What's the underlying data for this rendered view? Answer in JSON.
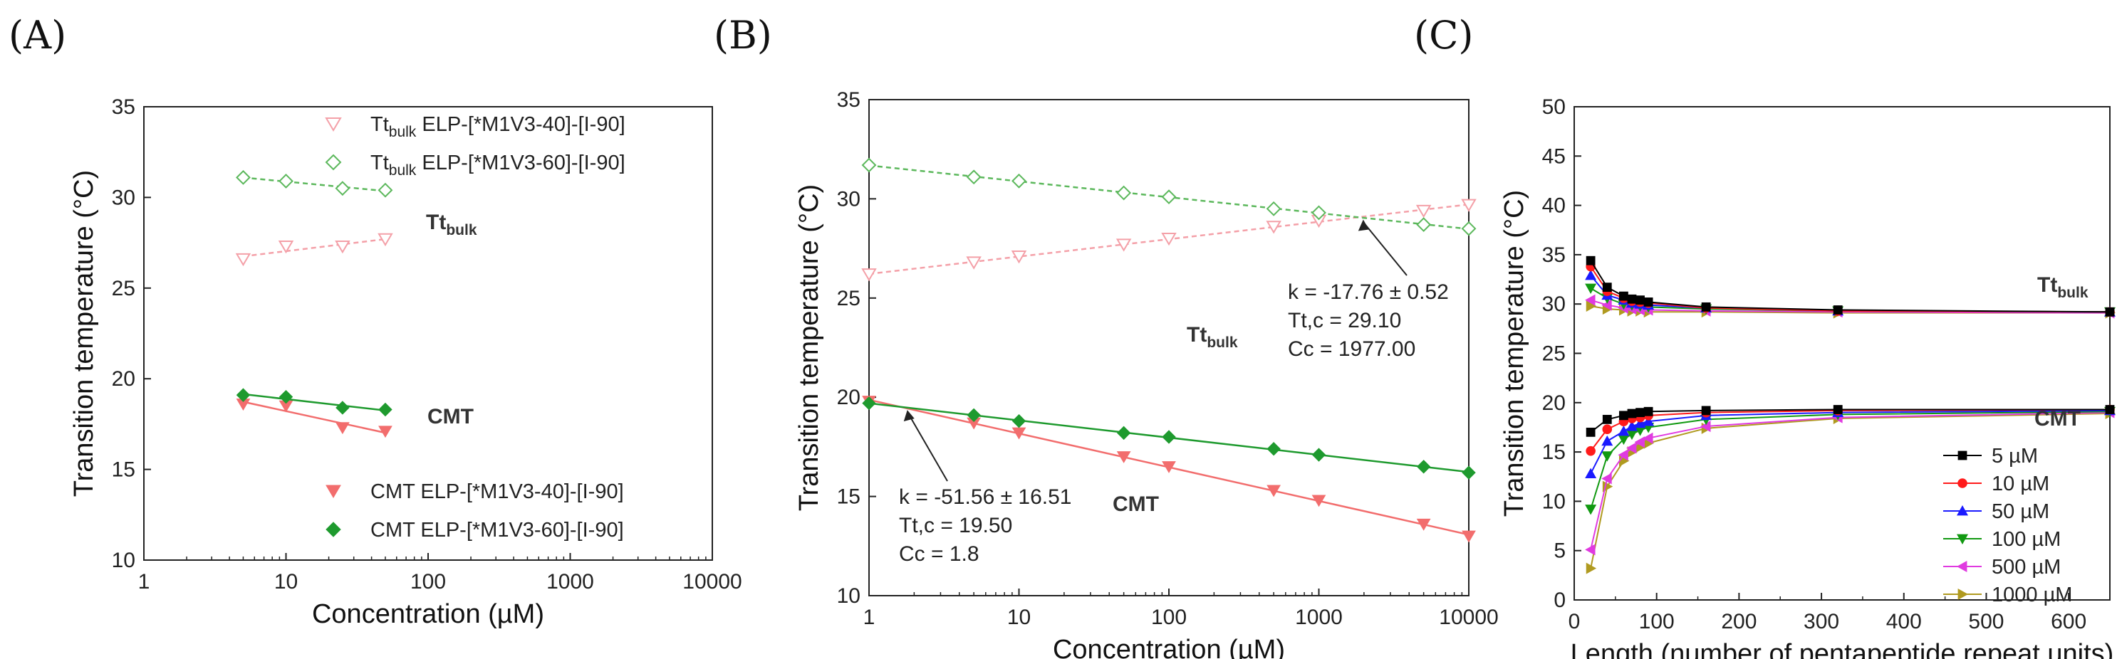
{
  "chart_data": [
    {
      "panel": "(A)",
      "type": "scatter",
      "xlabel": "Concentration (µM)",
      "ylabel": "Transition temperature (°C)",
      "xscale": "log",
      "xlim": [
        1,
        10000
      ],
      "ylim": [
        10,
        35
      ],
      "x_ticks": [
        "1",
        "10",
        "100",
        "1000",
        "10000"
      ],
      "y_ticks": [
        "10",
        "15",
        "20",
        "25",
        "30",
        "35"
      ],
      "grid": false,
      "legend_top": [
        {
          "sub": "bulk",
          "prefix": "Tt",
          "label": "ELP-[*M1V3-40]-[I-90]"
        },
        {
          "sub": "bulk",
          "prefix": "Tt",
          "label": "ELP-[*M1V3-60]-[I-90]"
        }
      ],
      "legend_bottom": [
        {
          "label": "CMT ELP-[*M1V3-40]-[I-90]"
        },
        {
          "label": "CMT ELP-[*M1V3-60]-[I-90]"
        }
      ],
      "annotations": {
        "tt_bulk": "Tt",
        "tt_bulk_sub": "bulk",
        "cmt": "CMT"
      },
      "series": [
        {
          "key": "tt40",
          "marker": "tri-down-open",
          "color": "#f4a0a8",
          "x": [
            5,
            10,
            25,
            50
          ],
          "y": [
            26.6,
            27.3,
            27.3,
            27.7
          ],
          "fit": true
        },
        {
          "key": "tt60",
          "marker": "diamond-open",
          "color": "#5cb85c",
          "x": [
            5,
            10,
            25,
            50
          ],
          "y": [
            31.1,
            30.9,
            30.5,
            30.4
          ],
          "fit": true
        },
        {
          "key": "cmt40",
          "marker": "tri-down-filled",
          "color": "#f26d6d",
          "x": [
            5,
            10,
            25,
            50
          ],
          "y": [
            18.6,
            18.5,
            17.3,
            17.1
          ],
          "fit": true
        },
        {
          "key": "cmt60",
          "marker": "diamond-filled",
          "color": "#1e9a2e",
          "x": [
            5,
            10,
            25,
            50
          ],
          "y": [
            19.1,
            19.0,
            18.4,
            18.3
          ],
          "fit": true
        }
      ]
    },
    {
      "panel": "(B)",
      "type": "scatter",
      "xlabel": "Concentration (µM)",
      "ylabel": "Transition temperature (°C)",
      "xscale": "log",
      "xlim": [
        1,
        10000
      ],
      "ylim": [
        10,
        35
      ],
      "x_ticks": [
        "1",
        "10",
        "100",
        "1000",
        "10000"
      ],
      "y_ticks": [
        "10",
        "15",
        "20",
        "25",
        "30",
        "35"
      ],
      "grid": false,
      "annotations": {
        "bulk_k": "k = -17.76 ± 0.52",
        "bulk_ttc": "Tt,c = 29.10",
        "bulk_cc": "Cc = 1977.00",
        "cmt_k": "k = -51.56 ± 16.51",
        "cmt_ttc": "Tt,c = 19.50",
        "cmt_cc": "Cc = 1.8",
        "tt_bulk": "Tt",
        "tt_bulk_sub": "bulk",
        "cmt": "CMT"
      },
      "series": [
        {
          "key": "tt_pink",
          "marker": "tri-down-open",
          "color": "#f4a0a8",
          "x": [
            1,
            5,
            10,
            50,
            100,
            500,
            1000,
            5000,
            10000
          ],
          "y": [
            26.2,
            26.8,
            27.1,
            27.7,
            28.0,
            28.6,
            28.9,
            29.4,
            29.7
          ],
          "fit": true
        },
        {
          "key": "tt_green",
          "marker": "diamond-open",
          "color": "#5cb85c",
          "x": [
            1,
            5,
            10,
            50,
            100,
            500,
            1000,
            5000,
            10000
          ],
          "y": [
            31.7,
            31.1,
            30.9,
            30.3,
            30.1,
            29.5,
            29.3,
            28.7,
            28.5
          ],
          "fit": true
        },
        {
          "key": "cmt_pink",
          "marker": "tri-down-filled",
          "color": "#f26d6d",
          "x": [
            1,
            5,
            10,
            50,
            100,
            500,
            1000,
            5000,
            10000
          ],
          "y": [
            19.8,
            18.7,
            18.2,
            17.0,
            16.5,
            15.3,
            14.8,
            13.6,
            13.0
          ],
          "fit": true
        },
        {
          "key": "cmt_green",
          "marker": "diamond-filled",
          "color": "#1e9a2e",
          "x": [
            1,
            5,
            10,
            50,
            100,
            500,
            1000,
            5000,
            10000
          ],
          "y": [
            19.7,
            19.1,
            18.8,
            18.2,
            18.0,
            17.4,
            17.1,
            16.5,
            16.2
          ],
          "fit": true
        }
      ]
    },
    {
      "panel": "(C)",
      "type": "line",
      "xlabel": "Length (number of pentapeptide repeat units)",
      "ylabel": "Transition temperature (°C)",
      "xlim": [
        0,
        650
      ],
      "ylim": [
        0,
        50
      ],
      "x_ticks": [
        "0",
        "100",
        "200",
        "300",
        "400",
        "500",
        "600"
      ],
      "y_ticks": [
        "0",
        "5",
        "10",
        "15",
        "20",
        "25",
        "30",
        "35",
        "40",
        "45",
        "50"
      ],
      "grid": false,
      "legend_position": "bottom-right",
      "annotations": {
        "tt_bulk": "Tt",
        "tt_bulk_sub": "bulk",
        "cmt": "CMT"
      },
      "x": [
        20,
        40,
        60,
        70,
        80,
        90,
        160,
        320,
        650
      ],
      "series": [
        {
          "name": "5 µM",
          "marker": "square",
          "color": "#000000",
          "upper": [
            34.4,
            31.7,
            30.8,
            30.5,
            30.4,
            30.2,
            29.7,
            29.4,
            29.2
          ],
          "lower": [
            17.0,
            18.3,
            18.7,
            18.9,
            19.0,
            19.1,
            19.2,
            19.3,
            19.3
          ]
        },
        {
          "name": "10 µM",
          "marker": "circle",
          "color": "#ff1a1a",
          "upper": [
            33.8,
            31.3,
            30.6,
            30.3,
            30.2,
            30.1,
            29.6,
            29.3,
            29.2
          ],
          "lower": [
            15.1,
            17.3,
            18.1,
            18.4,
            18.5,
            18.7,
            19.0,
            19.2,
            19.3
          ]
        },
        {
          "name": "50 µM",
          "marker": "triangle-up",
          "color": "#1a1aff",
          "upper": [
            32.9,
            30.9,
            30.4,
            30.1,
            30.0,
            29.9,
            29.6,
            29.3,
            29.2
          ],
          "lower": [
            12.8,
            16.1,
            17.1,
            17.6,
            17.9,
            18.1,
            18.7,
            19.0,
            19.2
          ]
        },
        {
          "name": "100 µM",
          "marker": "triangle-down",
          "color": "#119911",
          "upper": [
            31.6,
            30.6,
            30.0,
            29.9,
            29.8,
            29.7,
            29.5,
            29.3,
            29.2
          ],
          "lower": [
            9.2,
            14.6,
            16.3,
            16.8,
            17.2,
            17.5,
            18.3,
            18.8,
            19.1
          ]
        },
        {
          "name": "500 µM",
          "marker": "triangle-left",
          "color": "#e03ae0",
          "upper": [
            30.4,
            29.9,
            29.6,
            29.5,
            29.4,
            29.4,
            29.3,
            29.2,
            29.1
          ],
          "lower": [
            5.1,
            12.3,
            14.7,
            15.4,
            16.0,
            16.4,
            17.6,
            18.5,
            19.0
          ]
        },
        {
          "name": "1000 µM",
          "marker": "triangle-right",
          "color": "#b09a20",
          "upper": [
            29.8,
            29.5,
            29.4,
            29.3,
            29.3,
            29.2,
            29.2,
            29.1,
            29.1
          ],
          "lower": [
            3.2,
            11.5,
            14.1,
            15.0,
            15.5,
            15.9,
            17.4,
            18.4,
            18.9
          ]
        }
      ]
    }
  ]
}
